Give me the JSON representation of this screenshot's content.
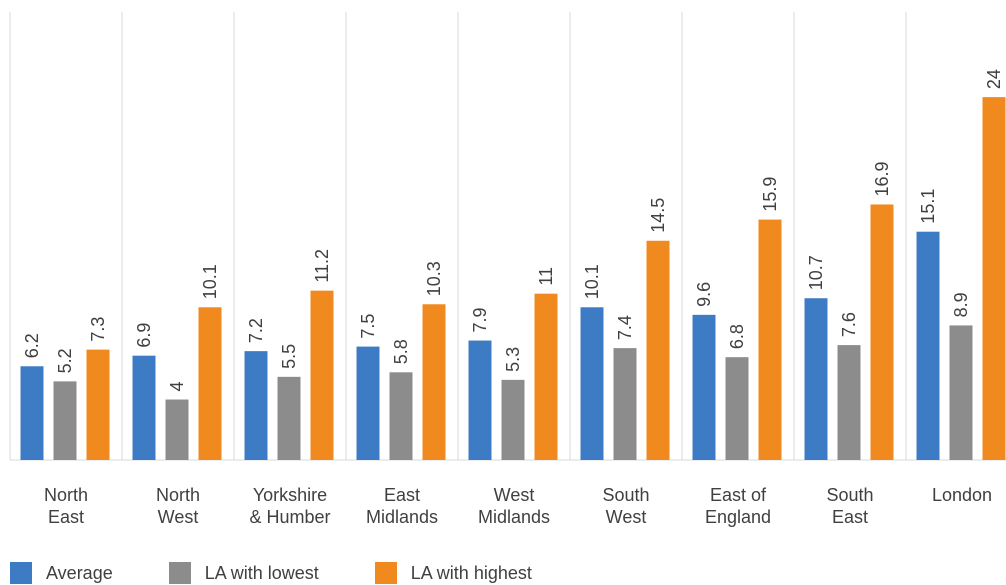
{
  "chart_data": {
    "type": "bar",
    "categories": [
      "North East",
      "North West",
      "Yorkshire & Humber",
      "East Midlands",
      "West Midlands",
      "South West",
      "East of England",
      "South East",
      "London"
    ],
    "series": [
      {
        "name": "Average",
        "color": "#3d7cc4",
        "values": [
          6.2,
          6.9,
          7.2,
          7.5,
          7.9,
          10.1,
          9.6,
          10.7,
          15.1
        ]
      },
      {
        "name": "LA with lowest",
        "color": "#8c8c8c",
        "values": [
          5.2,
          4,
          5.5,
          5.8,
          5.3,
          7.4,
          6.8,
          7.6,
          8.9
        ]
      },
      {
        "name": "LA with highest",
        "color": "#f08a1f",
        "values": [
          7.3,
          10.1,
          11.2,
          10.3,
          11,
          14.5,
          15.9,
          16.9,
          24
        ]
      }
    ]
  }
}
